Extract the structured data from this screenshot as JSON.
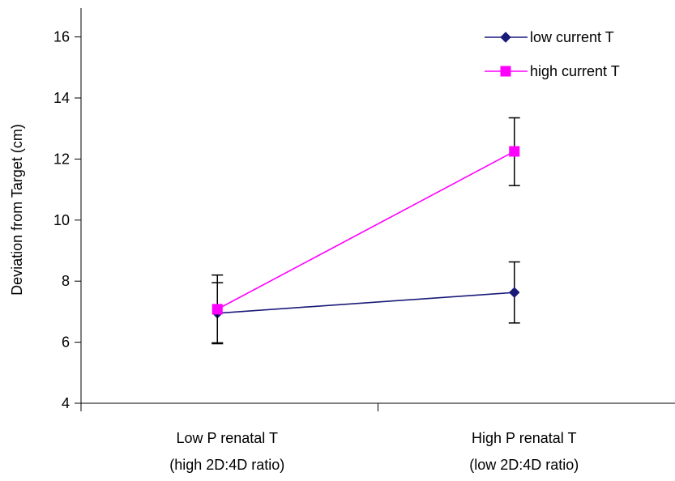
{
  "chart_data": {
    "type": "line",
    "title": "",
    "xlabel": "",
    "ylabel": "Deviation from Target (cm)",
    "ylim": [
      4,
      17
    ],
    "yticks": [
      4,
      6,
      8,
      10,
      12,
      14,
      16
    ],
    "grid": false,
    "legend_position": "top-right",
    "categories": [
      [
        "Low P renatal T",
        "(high 2D:4D ratio)"
      ],
      [
        "High P renatal T",
        "(low 2D:4D ratio)"
      ]
    ],
    "series": [
      {
        "name": "low current T",
        "color": "#1a1a7a",
        "marker": "diamond",
        "values": [
          6.95,
          7.63
        ],
        "error_low": [
          5.95,
          6.63
        ],
        "error_high": [
          7.95,
          8.63
        ]
      },
      {
        "name": "high current T",
        "color": "#ff00ff",
        "marker": "square",
        "values": [
          7.08,
          12.25
        ],
        "error_low": [
          5.98,
          11.13
        ],
        "error_high": [
          8.2,
          13.35
        ]
      }
    ]
  }
}
